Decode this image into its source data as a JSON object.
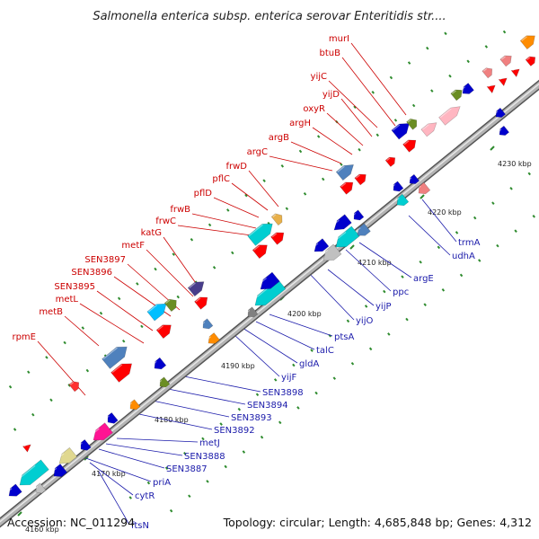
{
  "title": "Salmonella enterica subsp. enterica serovar Enteritidis str....",
  "footer": {
    "accession": "Accession: NC_011294",
    "summary": "Topology: circular; Length: 4,685,848 bp; Genes: 4,312"
  },
  "colors": {
    "forward_label": "#cc0000",
    "reverse_label": "#1a1aaa",
    "backbone": "#8c8c8c",
    "tick": "#2e8b2e"
  },
  "ticks": [
    {
      "label": "4160 kbp"
    },
    {
      "label": "4170 kbp"
    },
    {
      "label": "4180 kbp"
    },
    {
      "label": "4190 kbp"
    },
    {
      "label": "4200 kbp"
    },
    {
      "label": "4210 kbp"
    },
    {
      "label": "4220 kbp"
    },
    {
      "label": "4230 kbp"
    }
  ],
  "forward_genes": [
    {
      "name": "rpmE",
      "color": "#ffffff"
    },
    {
      "name": "metB",
      "color": "#4f81bd"
    },
    {
      "name": "metL",
      "color": "#4f81bd"
    },
    {
      "name": "SEN3895",
      "color": "#00bfff"
    },
    {
      "name": "SEN3896",
      "color": "#00bfff"
    },
    {
      "name": "SEN3897",
      "color": "#6b8e23"
    },
    {
      "name": "metF",
      "color": "#4f81bd"
    },
    {
      "name": "katG",
      "color": "#483d8b"
    },
    {
      "name": "frwC",
      "color": "#00ced1"
    },
    {
      "name": "frwB",
      "color": "#00ced1"
    },
    {
      "name": "pflD",
      "color": "#00ced1"
    },
    {
      "name": "pflC",
      "color": "#00ced1"
    },
    {
      "name": "frwD",
      "color": "#e8b04a"
    },
    {
      "name": "argC",
      "color": "#4f81bd"
    },
    {
      "name": "argB",
      "color": "#4f81bd"
    },
    {
      "name": "argH",
      "color": "#4f81bd"
    },
    {
      "name": "oxyR",
      "color": "#ff0000"
    },
    {
      "name": "yijD",
      "color": "#ff0000"
    },
    {
      "name": "yijC",
      "color": "#ff0000"
    },
    {
      "name": "btuB",
      "color": "#0000cd"
    },
    {
      "name": "murI",
      "color": "#6b8e23"
    }
  ],
  "reverse_genes": [
    {
      "name": "ftsN",
      "color": "#00bfff"
    },
    {
      "name": "cytR",
      "color": "#0000cd"
    },
    {
      "name": "priA",
      "color": "#e0d890"
    },
    {
      "name": "SEN3887",
      "color": "#0000cd"
    },
    {
      "name": "SEN3888",
      "color": "#0000cd"
    },
    {
      "name": "metJ",
      "color": "#ff1493"
    },
    {
      "name": "SEN3892",
      "color": "#0000cd"
    },
    {
      "name": "SEN3893",
      "color": "#0000cd"
    },
    {
      "name": "SEN3894",
      "color": "#6b8e23"
    },
    {
      "name": "SEN3898",
      "color": "#0000cd"
    },
    {
      "name": "yijF",
      "color": "#ff8c00"
    },
    {
      "name": "gldA",
      "color": "#4f81bd"
    },
    {
      "name": "talC",
      "color": "#0000cd"
    },
    {
      "name": "ptsA",
      "color": "#00ced1"
    },
    {
      "name": "yijO",
      "color": "#0000cd"
    },
    {
      "name": "yijP",
      "color": "#00ced1"
    },
    {
      "name": "ppc",
      "color": "#0000cd"
    },
    {
      "name": "argE",
      "color": "#0000cd"
    },
    {
      "name": "udhA",
      "color": "#00ced1"
    },
    {
      "name": "trmA",
      "color": "#f08080"
    }
  ]
}
